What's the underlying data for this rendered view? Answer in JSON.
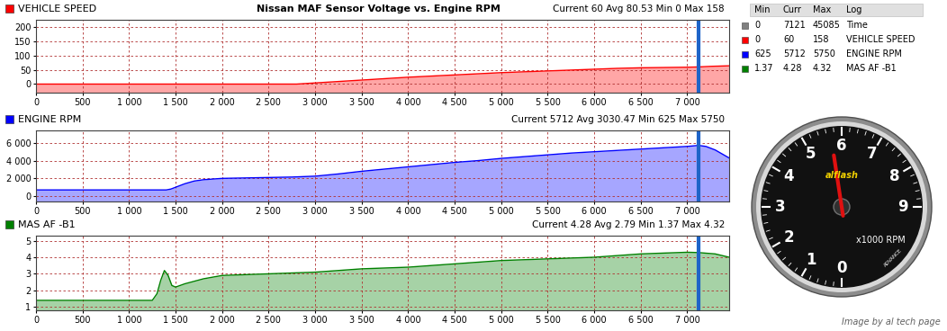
{
  "title": "Nissan MAF Sensor Voltage vs. Engine RPM",
  "caption": "Image by al tech page",
  "cursor": {
    "x": 7121,
    "color": "#1e64c8"
  },
  "chart_data": [
    {
      "type": "area",
      "name": "VEHICLE SPEED",
      "stats": "Current 60 Avg 80.53 Min 0 Max 158",
      "color": "#ff0000",
      "grid": true,
      "x": [
        0,
        500,
        1000,
        1500,
        2000,
        2500,
        2800,
        3000,
        3250,
        3500,
        3750,
        4000,
        4250,
        4500,
        4750,
        5000,
        5250,
        5500,
        5750,
        6000,
        6250,
        6500,
        6750,
        7000,
        7121,
        7250,
        7450
      ],
      "values": [
        0,
        0,
        0,
        0,
        0,
        0,
        0,
        4,
        9,
        14,
        19,
        24,
        28,
        32,
        36,
        40,
        43,
        46,
        49,
        52,
        55,
        57,
        58,
        59,
        60,
        62,
        64
      ],
      "xlim": [
        0,
        7450
      ],
      "ylim": [
        -30,
        225
      ],
      "xticks": [
        0,
        500,
        {
          "value": 1000,
          "label": "1 000"
        },
        {
          "value": 1500,
          "label": "1 500"
        },
        {
          "value": 2000,
          "label": "2 000"
        },
        {
          "value": 2500,
          "label": "2 500"
        },
        {
          "value": 3000,
          "label": "3 000"
        },
        {
          "value": 3500,
          "label": "3 500"
        },
        {
          "value": 4000,
          "label": "4 000"
        },
        {
          "value": 4500,
          "label": "4 500"
        },
        {
          "value": 5000,
          "label": "5 000"
        },
        {
          "value": 5500,
          "label": "5 500"
        },
        {
          "value": 6000,
          "label": "6 000"
        },
        {
          "value": 6500,
          "label": "6 500"
        },
        {
          "value": 7000,
          "label": "7 000"
        }
      ],
      "yticks": [
        0,
        50,
        100,
        150,
        200
      ]
    },
    {
      "type": "area",
      "name": "ENGINE RPM",
      "stats": "Current 5712 Avg 3030.47 Min 625 Max 5750",
      "color": "#0000ff",
      "grid": true,
      "x": [
        0,
        500,
        1000,
        1400,
        1450,
        1500,
        1600,
        1700,
        1800,
        2000,
        2250,
        2500,
        2750,
        3000,
        3250,
        3500,
        3750,
        4000,
        4250,
        4500,
        4750,
        5000,
        5250,
        5500,
        5750,
        6000,
        6250,
        6500,
        6750,
        7000,
        7121,
        7200,
        7300,
        7400,
        7450
      ],
      "values": [
        700,
        700,
        700,
        700,
        800,
        1000,
        1400,
        1700,
        1850,
        2000,
        2050,
        2100,
        2150,
        2250,
        2500,
        2800,
        3050,
        3300,
        3550,
        3800,
        4000,
        4250,
        4450,
        4650,
        4850,
        5000,
        5150,
        5300,
        5450,
        5600,
        5712,
        5600,
        5200,
        4600,
        4300
      ],
      "xlim": [
        0,
        7450
      ],
      "ylim": [
        -600,
        7400
      ],
      "xticks": [
        0,
        500,
        {
          "value": 1000,
          "label": "1 000"
        },
        {
          "value": 1500,
          "label": "1 500"
        },
        {
          "value": 2000,
          "label": "2 000"
        },
        {
          "value": 2500,
          "label": "2 500"
        },
        {
          "value": 3000,
          "label": "3 000"
        },
        {
          "value": 3500,
          "label": "3 500"
        },
        {
          "value": 4000,
          "label": "4 000"
        },
        {
          "value": 4500,
          "label": "4 500"
        },
        {
          "value": 5000,
          "label": "5 000"
        },
        {
          "value": 5500,
          "label": "5 500"
        },
        {
          "value": 6000,
          "label": "6 000"
        },
        {
          "value": 6500,
          "label": "6 500"
        },
        {
          "value": 7000,
          "label": "7 000"
        }
      ],
      "yticks": [
        0,
        {
          "value": 2000,
          "label": "2 000"
        },
        {
          "value": 4000,
          "label": "4 000"
        },
        {
          "value": 6000,
          "label": "6 000"
        }
      ]
    },
    {
      "type": "area",
      "name": "MAS AF -B1",
      "stats": "Current 4.28 Avg 2.79 Min 1.37 Max 4.32",
      "color": "#008000",
      "grid": true,
      "x": [
        0,
        500,
        1000,
        1250,
        1300,
        1340,
        1380,
        1420,
        1460,
        1500,
        1600,
        1800,
        2000,
        2500,
        3000,
        3500,
        4000,
        4500,
        5000,
        5500,
        6000,
        6500,
        7000,
        7121,
        7300,
        7450
      ],
      "values": [
        1.4,
        1.4,
        1.4,
        1.4,
        1.8,
        2.6,
        3.2,
        2.9,
        2.3,
        2.2,
        2.4,
        2.7,
        2.9,
        3.0,
        3.1,
        3.3,
        3.4,
        3.6,
        3.8,
        3.9,
        4.0,
        4.2,
        4.3,
        4.28,
        4.2,
        4.0
      ],
      "xlim": [
        0,
        7450
      ],
      "ylim": [
        0.8,
        5.3
      ],
      "xticks": [
        0,
        500,
        {
          "value": 1000,
          "label": "1 000"
        },
        {
          "value": 1500,
          "label": "1 500"
        },
        {
          "value": 2000,
          "label": "2 000"
        },
        {
          "value": 2500,
          "label": "2 500"
        },
        {
          "value": 3000,
          "label": "3 000"
        },
        {
          "value": 3500,
          "label": "3 500"
        },
        {
          "value": 4000,
          "label": "4 000"
        },
        {
          "value": 4500,
          "label": "4 500"
        },
        {
          "value": 5000,
          "label": "5 000"
        },
        {
          "value": 5500,
          "label": "5 500"
        },
        {
          "value": 6000,
          "label": "6 000"
        },
        {
          "value": 6500,
          "label": "6 500"
        },
        {
          "value": 7000,
          "label": "7 000"
        }
      ],
      "yticks": [
        1,
        2,
        3,
        4,
        5
      ]
    }
  ],
  "table": {
    "columns": [
      "Min",
      "Curr",
      "Max",
      "Log"
    ],
    "rows": [
      [
        0,
        7121,
        45085,
        "Time"
      ],
      [
        0,
        60,
        158,
        "VEHICLE SPEED"
      ],
      [
        625,
        5712,
        5750,
        "ENGINE RPM"
      ],
      [
        1.37,
        4.28,
        4.32,
        "MAS AF -B1"
      ]
    ],
    "colors": [
      "#808080",
      "#ff0000",
      "#0000ff",
      "#008000"
    ]
  },
  "gauge": {
    "ticks": [
      0,
      1,
      2,
      3,
      4,
      5,
      6,
      7,
      8,
      9
    ],
    "needle": 5.712,
    "unit_label": "x1000 RPM",
    "brand": "alflash",
    "maker": "ADVANCE"
  }
}
